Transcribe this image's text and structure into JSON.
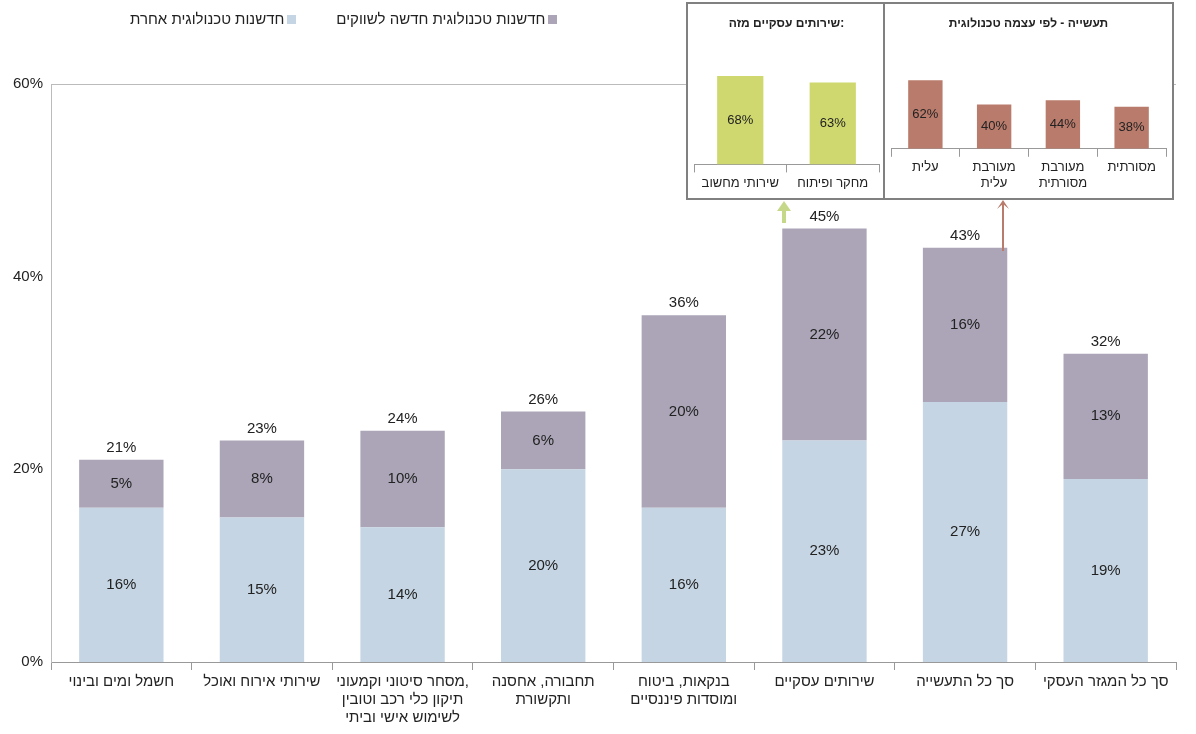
{
  "chart_data": [
    {
      "type": "bar",
      "stacked": true,
      "legend": "top",
      "grid": false,
      "categories": [
        "חשמל ומים ובינוי",
        "שירותי אירוח ואוכל",
        "מסחר סיטוני וקמעוני, תיקון כלי רכב וטובין לשימוש אישי וביתי",
        "תחבורה, אחסנה ותקשורת",
        "בנקאות, ביטוח ומוסדות פיננסיים",
        "שירותים עסקיים",
        "סך כל התעשייה",
        "סך כל המגזר העסקי"
      ],
      "series": [
        {
          "name": "חדשנות טכנולוגית אחרת",
          "color": "#c5d5e3",
          "values": [
            16,
            15,
            14,
            20,
            16,
            23,
            27,
            19
          ],
          "value_labels": [
            "16%",
            "15%",
            "14%",
            "20%",
            "16%",
            "23%",
            "27%",
            "19%"
          ]
        },
        {
          "name": "חדשנות טכנולוגית חדשה לשווקים",
          "color": "#aba5b7",
          "values": [
            5,
            8,
            10,
            6,
            20,
            22,
            16,
            13
          ],
          "value_labels": [
            "5%",
            "8%",
            "10%",
            "6%",
            "20%",
            "22%",
            "16%",
            "13%"
          ]
        }
      ],
      "totals": [
        "21%",
        "23%",
        "24%",
        "26%",
        "36%",
        "45%",
        "43%",
        "32%"
      ],
      "ylim": [
        0,
        60
      ],
      "yticks": [
        {
          "value": 0,
          "label": "0%"
        },
        {
          "value": 20,
          "label": "20%"
        },
        {
          "value": 40,
          "label": "40%"
        },
        {
          "value": 60,
          "label": "60%"
        }
      ]
    },
    {
      "type": "bar",
      "title": "שירותים עסקיים מזה:",
      "tick_labels": "x",
      "categories": [
        "שירותי מחשוב",
        "מחקר ופיתוח"
      ],
      "values": [
        68,
        63
      ],
      "color": "#cfd86f",
      "value_labels": [
        "68%",
        "63%"
      ]
    },
    {
      "type": "bar",
      "title": "תעשייה - לפי עצמה טכנולוגית",
      "tick_labels": "x",
      "categories": [
        "עלית",
        "מעורבת עלית",
        "מעורבת מסורתית",
        "מסורתית"
      ],
      "values": [
        62,
        40,
        44,
        38
      ],
      "color": "#b97b6b",
      "value_labels": [
        "62%",
        "40%",
        "44%",
        "38%"
      ]
    }
  ]
}
